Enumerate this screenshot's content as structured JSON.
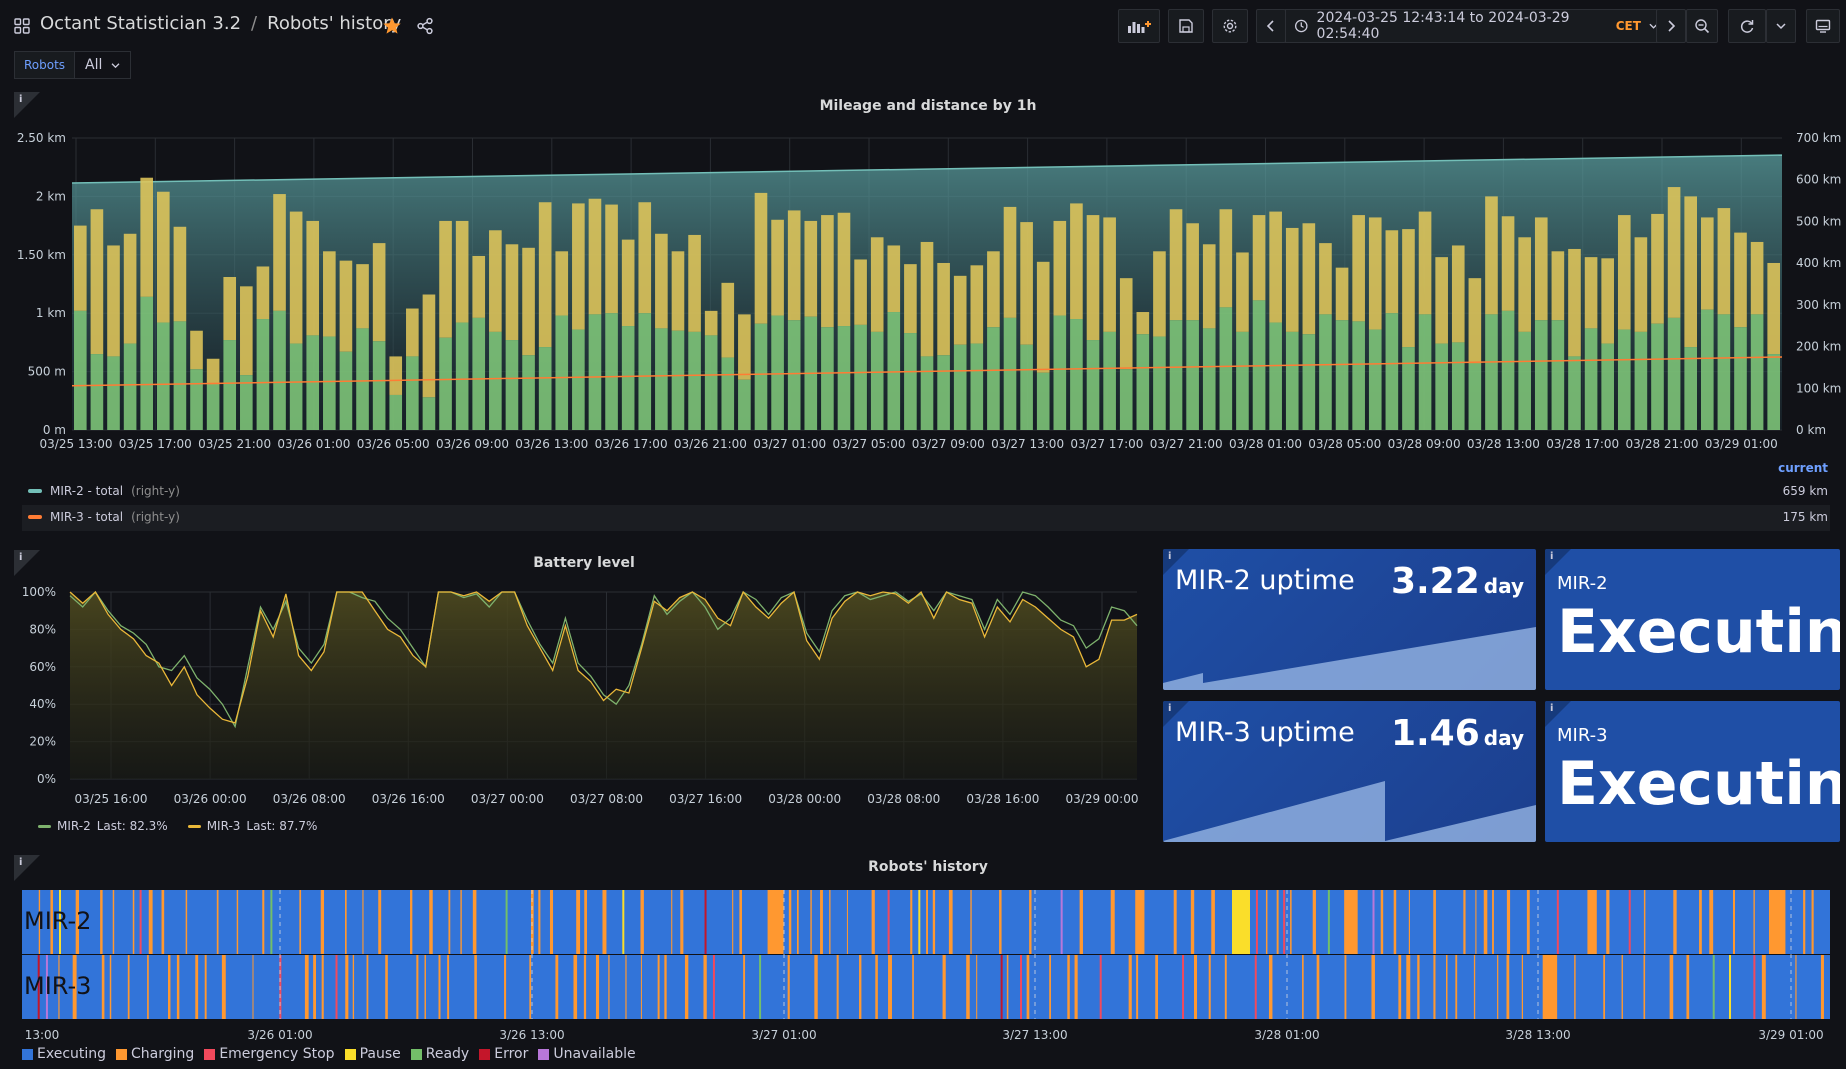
{
  "header": {
    "app_name": "Octant Statistician 3.2",
    "separator": "/",
    "dashboard_title": "Robots' history",
    "time_range": "2024-03-25 12:43:14 to 2024-03-29 02:54:40",
    "timezone": "CET"
  },
  "variables": {
    "label": "Robots",
    "selected": "All"
  },
  "mileage_panel": {
    "title": "Mileage and distance by 1h",
    "legend_header": "current",
    "legend": [
      {
        "name": "MIR-2 - total",
        "axis_note": "(right-y)",
        "color": "#73bfb8",
        "current": "659 km"
      },
      {
        "name": "MIR-3 - total",
        "axis_note": "(right-y)",
        "color": "#ff7c34",
        "current": "175 km"
      }
    ]
  },
  "chart_data": [
    {
      "type": "bar",
      "title": "Mileage and distance by 1h",
      "stacked": true,
      "y_left_ticks": [
        "0 m",
        "500 m",
        "1 km",
        "1.50 km",
        "2 km",
        "2.50 km"
      ],
      "y_left_lim": [
        0,
        2.5
      ],
      "y_right_ticks": [
        "0 km",
        "100 km",
        "200 km",
        "300 km",
        "400 km",
        "500 km",
        "600 km",
        "700 km"
      ],
      "y_right_lim": [
        0,
        700
      ],
      "x_ticks": [
        "03/25 13:00",
        "03/25 17:00",
        "03/25 21:00",
        "03/26 01:00",
        "03/26 05:00",
        "03/26 09:00",
        "03/26 13:00",
        "03/26 17:00",
        "03/26 21:00",
        "03/27 01:00",
        "03/27 05:00",
        "03/27 09:00",
        "03/27 13:00",
        "03/27 17:00",
        "03/27 21:00",
        "03/28 01:00",
        "03/28 05:00",
        "03/28 09:00",
        "03/28 13:00",
        "03/28 17:00",
        "03/28 21:00",
        "03/29 01:00"
      ],
      "bars_green_km": [
        1.02,
        0.65,
        0.63,
        0.74,
        1.14,
        0.92,
        0.93,
        0.52,
        0.39,
        0.77,
        0.47,
        0.95,
        1.02,
        0.74,
        0.81,
        0.8,
        0.67,
        0.87,
        0.76,
        0.3,
        0.63,
        0.28,
        0.79,
        0.92,
        0.96,
        0.84,
        0.77,
        0.64,
        0.71,
        0.98,
        0.86,
        0.99,
        1.0,
        0.89,
        1.0,
        0.87,
        0.85,
        0.84,
        0.81,
        0.62,
        0.43,
        0.91,
        0.98,
        0.94,
        0.97,
        0.88,
        0.89,
        0.9,
        0.84,
        1.01,
        0.83,
        0.63,
        0.64,
        0.73,
        0.74,
        0.88,
        0.96,
        0.73,
        0.49,
        0.98,
        0.95,
        0.77,
        0.84,
        0.52,
        0.82,
        0.8,
        0.94,
        0.94,
        0.87,
        1.05,
        0.84,
        1.11,
        0.92,
        0.84,
        0.82,
        0.99,
        0.94,
        0.93,
        0.86,
        1.0,
        0.71,
        0.99,
        0.74,
        0.75,
        0.57,
        0.99,
        1.02,
        0.84,
        0.94,
        0.94,
        0.63,
        0.87,
        0.74,
        0.86,
        0.84,
        0.91,
        0.96,
        0.71,
        1.03,
        0.99,
        0.88,
        0.99,
        0.65
      ],
      "bars_yellow_km": [
        0.73,
        1.24,
        0.95,
        0.94,
        1.02,
        1.12,
        0.81,
        0.33,
        0.22,
        0.54,
        0.76,
        0.45,
        1.0,
        1.13,
        0.98,
        0.73,
        0.78,
        0.55,
        0.84,
        0.33,
        0.41,
        0.88,
        1.0,
        0.87,
        0.53,
        0.87,
        0.82,
        0.92,
        1.24,
        0.55,
        1.08,
        0.99,
        0.93,
        0.74,
        0.95,
        0.81,
        0.68,
        0.83,
        0.21,
        0.64,
        0.56,
        1.12,
        0.82,
        0.94,
        0.82,
        0.96,
        0.97,
        0.56,
        0.81,
        0.57,
        0.59,
        0.98,
        0.79,
        0.59,
        0.67,
        0.65,
        0.95,
        1.05,
        0.95,
        0.81,
        0.99,
        1.07,
        0.98,
        0.78,
        0.19,
        0.73,
        0.95,
        0.83,
        0.72,
        0.84,
        0.68,
        0.73,
        0.95,
        0.89,
        0.95,
        0.61,
        0.45,
        0.91,
        0.96,
        0.71,
        1.01,
        0.88,
        0.74,
        0.83,
        0.73,
        1.01,
        0.81,
        0.81,
        0.88,
        0.59,
        0.92,
        0.61,
        0.73,
        0.98,
        0.81,
        0.94,
        1.12,
        1.29,
        0.79,
        0.91,
        0.81,
        0.62,
        0.78
      ],
      "series": [
        {
          "name": "MIR-2 - total",
          "axis": "right",
          "start_km": 592,
          "end_km": 659
        },
        {
          "name": "MIR-3 - total",
          "axis": "right",
          "start_km": 106,
          "end_km": 175
        }
      ]
    },
    {
      "type": "line",
      "title": "Battery level",
      "y_ticks": [
        "0%",
        "20%",
        "40%",
        "60%",
        "80%",
        "100%"
      ],
      "ylim": [
        0,
        100
      ],
      "x_ticks": [
        "03/25 16:00",
        "03/26 00:00",
        "03/26 08:00",
        "03/26 16:00",
        "03/27 00:00",
        "03/27 08:00",
        "03/27 16:00",
        "03/28 00:00",
        "03/28 08:00",
        "03/28 16:00",
        "03/29 00:00"
      ],
      "series": [
        {
          "name": "MIR-2",
          "last": "82.3%",
          "color": "#7eb26d",
          "values": [
            98,
            92,
            100,
            90,
            82,
            78,
            72,
            60,
            58,
            66,
            54,
            48,
            40,
            28,
            60,
            92,
            80,
            95,
            70,
            62,
            72,
            100,
            100,
            97,
            95,
            86,
            80,
            70,
            60,
            100,
            100,
            97,
            99,
            92,
            100,
            100,
            85,
            72,
            62,
            86,
            62,
            55,
            45,
            40,
            50,
            72,
            98,
            88,
            95,
            100,
            92,
            80,
            86,
            100,
            96,
            88,
            97,
            100,
            78,
            68,
            90,
            98,
            100,
            96,
            98,
            100,
            95,
            99,
            90,
            100,
            98,
            96,
            80,
            96,
            88,
            100,
            98,
            92,
            85,
            82,
            70,
            75,
            92,
            90,
            82
          ]
        },
        {
          "name": "MIR-3",
          "last": "87.7%",
          "color": "#eab839",
          "values": [
            100,
            94,
            100,
            88,
            80,
            75,
            66,
            62,
            50,
            60,
            45,
            38,
            32,
            30,
            55,
            90,
            76,
            99,
            66,
            58,
            68,
            100,
            100,
            100,
            90,
            80,
            76,
            66,
            60,
            100,
            100,
            98,
            100,
            95,
            100,
            100,
            82,
            70,
            58,
            82,
            58,
            52,
            42,
            48,
            46,
            70,
            95,
            90,
            97,
            100,
            96,
            86,
            82,
            100,
            92,
            86,
            94,
            100,
            74,
            64,
            86,
            95,
            100,
            98,
            100,
            99,
            94,
            100,
            86,
            100,
            96,
            94,
            76,
            92,
            84,
            96,
            92,
            86,
            80,
            76,
            60,
            64,
            85,
            85,
            88
          ]
        }
      ]
    },
    {
      "type": "heatmap",
      "title": "Robots' history",
      "x_ticks": [
        "13:00",
        "3/26 01:00",
        "3/26 13:00",
        "3/27 01:00",
        "3/27 13:00",
        "3/28 01:00",
        "3/28 13:00",
        "3/29 01:00"
      ],
      "rows": [
        "MIR-2",
        "MIR-3"
      ],
      "states": [
        "Executing",
        "Charging",
        "Emergency Stop",
        "Pause",
        "Ready",
        "Error",
        "Unavailable"
      ]
    }
  ],
  "battery_panel": {
    "title": "Battery level",
    "legend": [
      {
        "name": "MIR-2",
        "last": "Last: 82.3%",
        "color": "#7eb26d"
      },
      {
        "name": "MIR-3",
        "last": "Last: 87.7%",
        "color": "#eab839"
      }
    ]
  },
  "stats": {
    "mir2_uptime": {
      "title": "MIR-2 uptime",
      "value": "3.22",
      "unit": "day"
    },
    "mir3_uptime": {
      "title": "MIR-3 uptime",
      "value": "1.46",
      "unit": "day"
    },
    "mir2_state": {
      "robot": "MIR-2",
      "state": "Executing"
    },
    "mir3_state": {
      "robot": "MIR-3",
      "state": "Executing"
    }
  },
  "history_panel": {
    "title": "Robots' history",
    "rows": [
      "MIR-2",
      "MIR-3"
    ],
    "legend": [
      {
        "label": "Executing",
        "color": "#3274d9"
      },
      {
        "label": "Charging",
        "color": "#ff9830"
      },
      {
        "label": "Emergency Stop",
        "color": "#f2495c"
      },
      {
        "label": "Pause",
        "color": "#fade2a"
      },
      {
        "label": "Ready",
        "color": "#73bf69"
      },
      {
        "label": "Error",
        "color": "#c4162a"
      },
      {
        "label": "Unavailable",
        "color": "#b877d9"
      }
    ]
  },
  "colors": {
    "background": "#111217",
    "panel": "#181b1f",
    "stat_blue": "#1f4fa6",
    "accent_blue": "#6e9fff",
    "star_orange": "#ff9830"
  }
}
